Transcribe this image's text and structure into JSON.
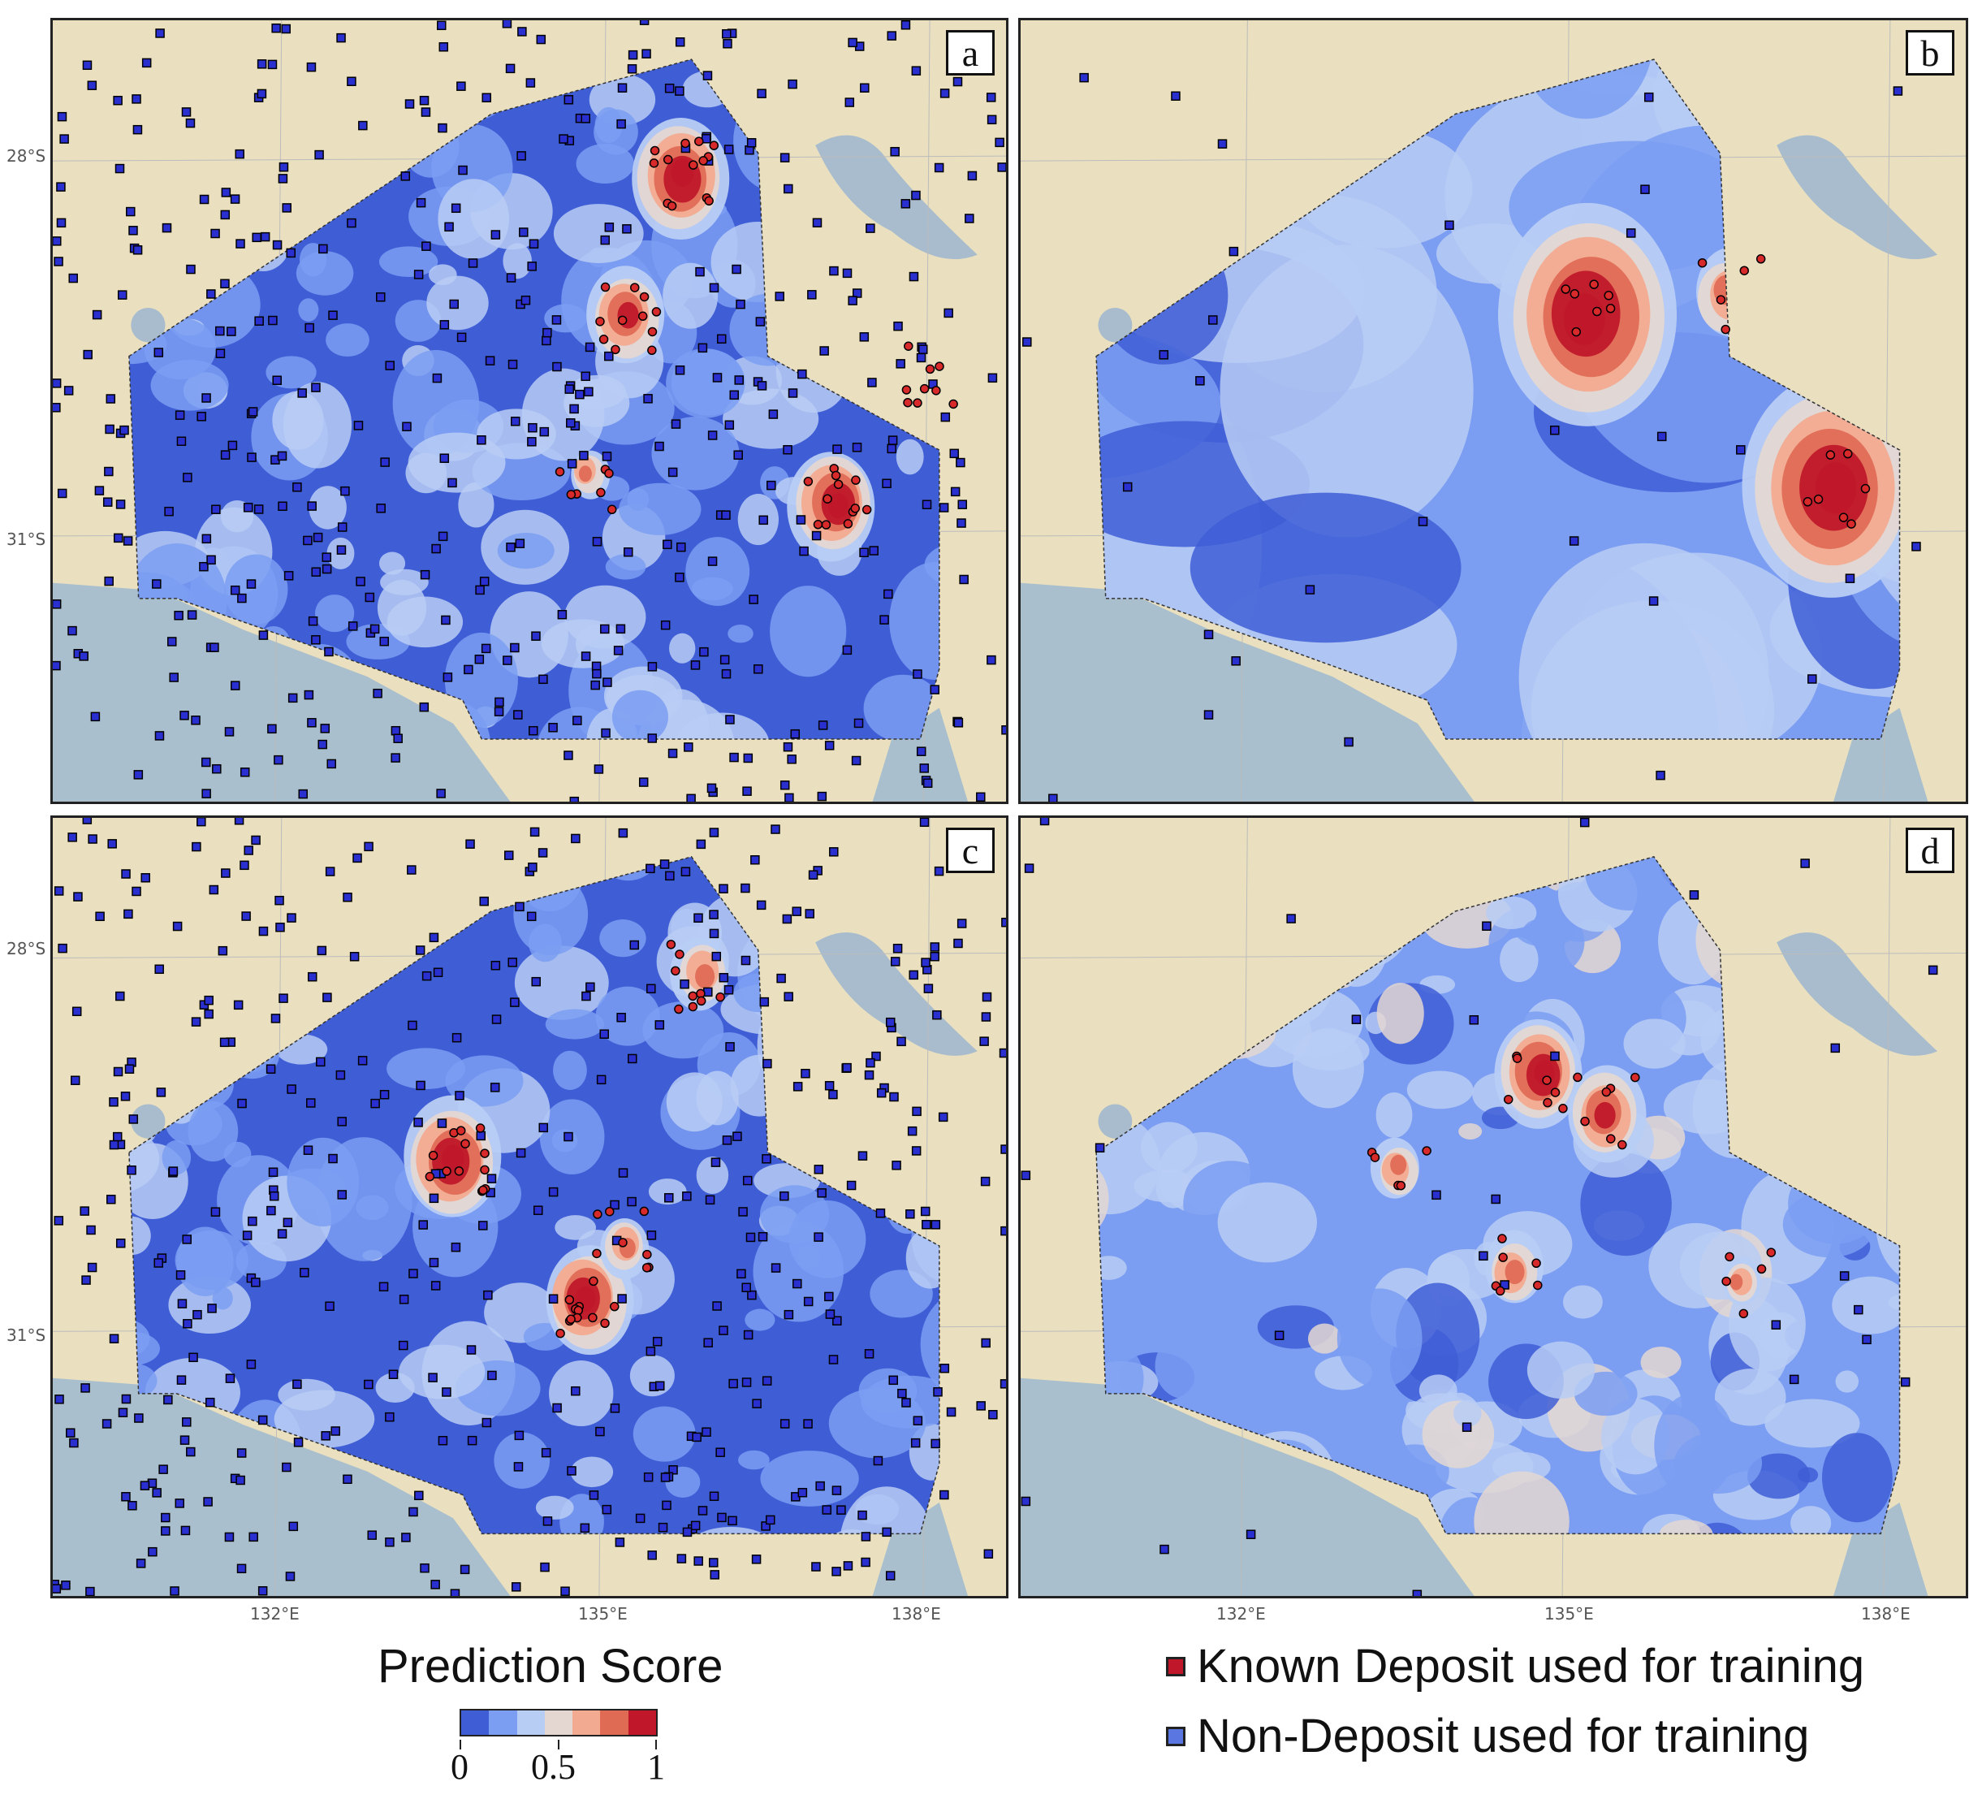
{
  "panels": [
    {
      "id": "a",
      "label": "a",
      "model": "dense",
      "hot": [
        [
          0.66,
          0.2,
          1.0
        ],
        [
          0.6,
          0.38,
          0.8
        ],
        [
          0.82,
          0.62,
          0.9
        ],
        [
          0.92,
          0.45,
          0.6
        ],
        [
          0.56,
          0.58,
          0.4
        ]
      ]
    },
    {
      "id": "b",
      "label": "b",
      "model": "smooth",
      "hot": [
        [
          0.6,
          0.38,
          1.0
        ],
        [
          0.86,
          0.6,
          1.0
        ],
        [
          0.75,
          0.35,
          0.4
        ]
      ]
    },
    {
      "id": "c",
      "label": "c",
      "model": "dense",
      "hot": [
        [
          0.42,
          0.44,
          1.0
        ],
        [
          0.56,
          0.62,
          0.9
        ],
        [
          0.68,
          0.2,
          0.6
        ],
        [
          0.6,
          0.55,
          0.5
        ]
      ]
    },
    {
      "id": "d",
      "label": "d",
      "model": "patchy",
      "hot": [
        [
          0.55,
          0.33,
          0.9
        ],
        [
          0.62,
          0.38,
          0.8
        ],
        [
          0.4,
          0.45,
          0.5
        ],
        [
          0.52,
          0.58,
          0.6
        ],
        [
          0.76,
          0.6,
          0.4
        ]
      ]
    }
  ],
  "axes": {
    "lat_labels": [
      "28°S",
      "31°S"
    ],
    "lon_labels": [
      "132°E",
      "135°E",
      "138°E"
    ]
  },
  "colorbar": {
    "title": "Prediction Score",
    "colors": [
      "#3f5ed6",
      "#7b9df2",
      "#b8cdf4",
      "#e4d7d2",
      "#f2ab90",
      "#e06b55",
      "#c0182a"
    ],
    "ticks": [
      "0",
      "0.5",
      "1"
    ]
  },
  "legend": [
    {
      "label": "Known Deposit used for training",
      "color": "#c0182a"
    },
    {
      "label": "Non-Deposit used for training",
      "color": "#5a76e0"
    }
  ],
  "colors": {
    "land": "#eae0bf",
    "sea": "#a9bfcd",
    "lake": "#a8bccd",
    "region_base": "#3f5ed6"
  }
}
